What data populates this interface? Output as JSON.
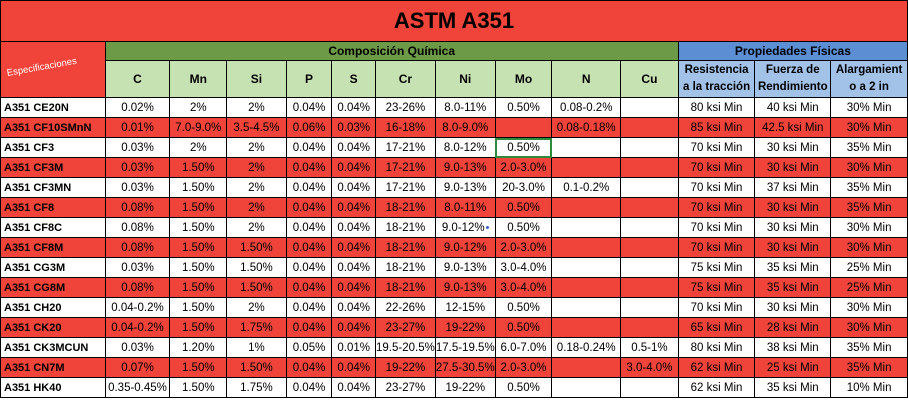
{
  "title": "ASTM A351",
  "spec_label": "Especificaciones",
  "composition_header": "Composición Química",
  "physical_header": "Propiedades Físicas",
  "elements": [
    "C",
    "Mn",
    "Si",
    "P",
    "S",
    "Cr",
    "Ni",
    "Mo",
    "N",
    "Cu"
  ],
  "physical_columns": [
    [
      "Resistencia",
      "a la tracción"
    ],
    [
      "Fuerza de",
      "Rendimiento"
    ],
    [
      "Alargamient",
      "o a 2 in"
    ]
  ],
  "rows": [
    {
      "name": "A351 CE20N",
      "c": "0.02%",
      "mn": "2%",
      "si": "2%",
      "p": "0.04%",
      "s": "0.04%",
      "cr": "23-26%",
      "ni": "8.0-11%",
      "mo": "0.50%",
      "n": "0.08-0.2%",
      "cu": "",
      "tensile": "80 ksi Min",
      "yield": "40 ksi Min",
      "elong": "30% Min"
    },
    {
      "name": "A351 CF10SMnN",
      "c": "0.01%",
      "mn": "7.0-9.0%",
      "si": "3.5-4.5%",
      "p": "0.06%",
      "s": "0.03%",
      "cr": "16-18%",
      "ni": "8.0-9.0%",
      "mo": "",
      "n": "0.08-0.18%",
      "cu": "",
      "tensile": "85 ksi Min",
      "yield": "42.5 ksi Min",
      "elong": "30% Min"
    },
    {
      "name": "A351 CF3",
      "c": "0.03%",
      "mn": "2%",
      "si": "2%",
      "p": "0.04%",
      "s": "0.04%",
      "cr": "17-21%",
      "ni": "8.0-12%",
      "mo": "0.50%",
      "n": "",
      "cu": "",
      "tensile": "70 ksi Min",
      "yield": "30 ksi Min",
      "elong": "35% Min"
    },
    {
      "name": "A351 CF3M",
      "c": "0.03%",
      "mn": "1.50%",
      "si": "2%",
      "p": "0.04%",
      "s": "0.04%",
      "cr": "17-21%",
      "ni": "9.0-13%",
      "mo": "2.0-3.0%",
      "n": "",
      "cu": "",
      "tensile": "70 ksi Min",
      "yield": "30 ksi Min",
      "elong": "30% Min"
    },
    {
      "name": "A351 CF3MN",
      "c": "0.03%",
      "mn": "1.50%",
      "si": "2%",
      "p": "0.04%",
      "s": "0.04%",
      "cr": "17-21%",
      "ni": "9.0-13%",
      "mo": "20-3.0%",
      "n": "0.1-0.2%",
      "cu": "",
      "tensile": "70 ksi Min",
      "yield": "37 ksi Min",
      "elong": "35% Min"
    },
    {
      "name": "A351 CF8",
      "c": "0.08%",
      "mn": "1.50%",
      "si": "2%",
      "p": "0.04%",
      "s": "0.04%",
      "cr": "18-21%",
      "ni": "8.0-11%",
      "mo": "0.50%",
      "n": "",
      "cu": "",
      "tensile": "70 ksi Min",
      "yield": "30 ksi Min",
      "elong": "35% Min"
    },
    {
      "name": "A351 CF8C",
      "c": "0.08%",
      "mn": "1.50%",
      "si": "2%",
      "p": "0.04%",
      "s": "0.04%",
      "cr": "18-21%",
      "ni": "9.0-12%",
      "mo": "0.50%",
      "n": "",
      "cu": "",
      "tensile": "70 ksi Min",
      "yield": "30 ksi Min",
      "elong": "30% Min"
    },
    {
      "name": "A351 CF8M",
      "c": "0.08%",
      "mn": "1.50%",
      "si": "1.50%",
      "p": "0.04%",
      "s": "0.04%",
      "cr": "18-21%",
      "ni": "9.0-12%",
      "mo": "2.0-3.0%",
      "n": "",
      "cu": "",
      "tensile": "70 ksi Min",
      "yield": "30 ksi Min",
      "elong": "30% Min"
    },
    {
      "name": "A351 CG3M",
      "c": "0.03%",
      "mn": "1.50%",
      "si": "1.50%",
      "p": "0.04%",
      "s": "0.04%",
      "cr": "18-21%",
      "ni": "9.0-13%",
      "mo": "3.0-4.0%",
      "n": "",
      "cu": "",
      "tensile": "75 ksi Min",
      "yield": "35 ksi Min",
      "elong": "25% Min"
    },
    {
      "name": "A351 CG8M",
      "c": "0.08%",
      "mn": "1.50%",
      "si": "1.50%",
      "p": "0.04%",
      "s": "0.04%",
      "cr": "18-21%",
      "ni": "9.0-13%",
      "mo": "3.0-4.0%",
      "n": "",
      "cu": "",
      "tensile": "75 ksi Min",
      "yield": "35 ksi Min",
      "elong": "25% Min"
    },
    {
      "name": "A351 CH20",
      "c": "0.04-0.2%",
      "mn": "1.50%",
      "si": "2%",
      "p": "0.04%",
      "s": "0.04%",
      "cr": "22-26%",
      "ni": "12-15%",
      "mo": "0.50%",
      "n": "",
      "cu": "",
      "tensile": "70 ksi Min",
      "yield": "30 ksi Min",
      "elong": "30% Min"
    },
    {
      "name": "A351 CK20",
      "c": "0.04-0.2%",
      "mn": "1.50%",
      "si": "1.75%",
      "p": "0.04%",
      "s": "0.04%",
      "cr": "23-27%",
      "ni": "19-22%",
      "mo": "0.50%",
      "n": "",
      "cu": "",
      "tensile": "65 ksi Min",
      "yield": "28 ksi Min",
      "elong": "30% Min"
    },
    {
      "name": "A351 CK3MCUN",
      "c": "0.03%",
      "mn": "1.20%",
      "si": "1%",
      "p": "0.05%",
      "s": "0.01%",
      "cr": "19.5-20.5%",
      "ni": "17.5-19.5%",
      "mo": "6.0-7.0%",
      "n": "0.18-0.24%",
      "cu": "0.5-1%",
      "tensile": "80 ksi Min",
      "yield": "38 ksi Min",
      "elong": "35% Min"
    },
    {
      "name": "A351 CN7M",
      "c": "0.07%",
      "mn": "1.50%",
      "si": "1.50%",
      "p": "0.04%",
      "s": "0.04%",
      "cr": "19-22%",
      "ni": "27.5-30.5%",
      "mo": "2.0-3.0%",
      "n": "",
      "cu": "3.0-4.0%",
      "tensile": "62 ksi Min",
      "yield": "25 ksi Min",
      "elong": "35% Min"
    },
    {
      "name": "A351 HK40",
      "c": "0.35-0.45%",
      "mn": "1.50%",
      "si": "1.75%",
      "p": "0.04%",
      "s": "0.04%",
      "cr": "23-27%",
      "ni": "19-22%",
      "mo": "0.50%",
      "n": "",
      "cu": "",
      "tensile": "62 ksi Min",
      "yield": "35 ksi Min",
      "elong": "10% Min"
    }
  ],
  "colors": {
    "title_red": "#f0433a",
    "composition_green": "#6c9a46",
    "element_green": "#c6e1b2",
    "physical_blue": "#5b8ed2",
    "physical_light_blue": "#a3c2e8"
  }
}
